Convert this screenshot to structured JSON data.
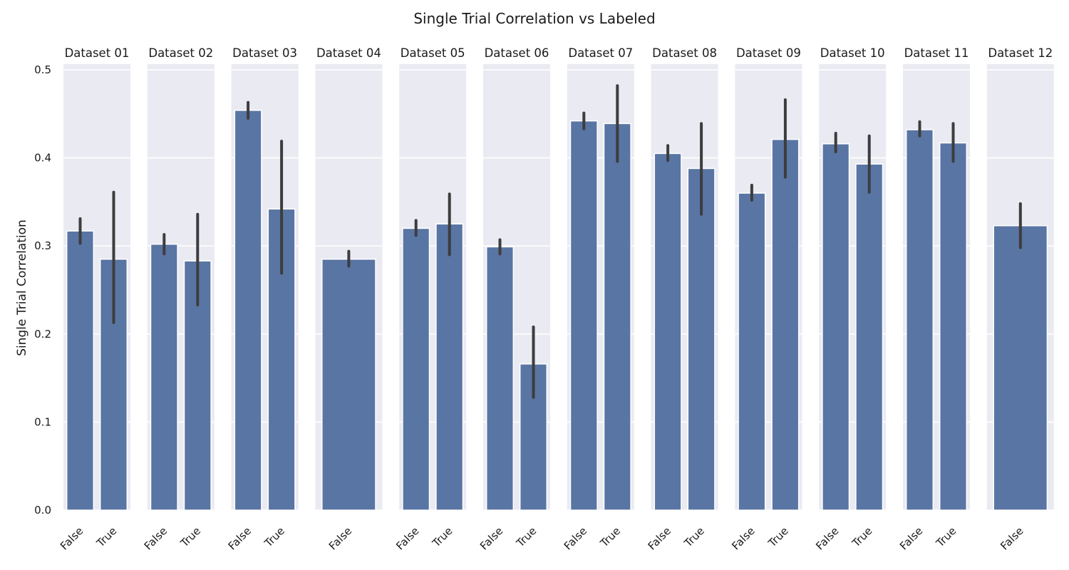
{
  "chart_data": {
    "type": "bar",
    "title": "Single Trial Correlation vs Labeled",
    "ylabel": "Single Trial Correlation",
    "xlabel": "",
    "ylim": [
      0,
      0.5
    ],
    "yticks": [
      "0.0",
      "0.1",
      "0.2",
      "0.3",
      "0.4",
      "0.5"
    ],
    "grid": true,
    "bar_color": "#5975a4",
    "error_bar_color": "#3d3d3d",
    "panel_background": "#eaeaf2",
    "panels": [
      {
        "name": "Dataset 01",
        "bars": [
          {
            "label": "False",
            "value": 0.317,
            "ci": [
              0.303,
              0.331
            ]
          },
          {
            "label": "True",
            "value": 0.285,
            "ci": [
              0.213,
              0.361
            ]
          }
        ]
      },
      {
        "name": "Dataset 02",
        "bars": [
          {
            "label": "False",
            "value": 0.302,
            "ci": [
              0.291,
              0.313
            ]
          },
          {
            "label": "True",
            "value": 0.283,
            "ci": [
              0.233,
              0.336
            ]
          }
        ]
      },
      {
        "name": "Dataset 03",
        "bars": [
          {
            "label": "False",
            "value": 0.454,
            "ci": [
              0.445,
              0.463
            ]
          },
          {
            "label": "True",
            "value": 0.342,
            "ci": [
              0.269,
              0.419
            ]
          }
        ]
      },
      {
        "name": "Dataset 04",
        "bars": [
          {
            "label": "False",
            "value": 0.285,
            "ci": [
              0.277,
              0.294
            ]
          }
        ]
      },
      {
        "name": "Dataset 05",
        "bars": [
          {
            "label": "False",
            "value": 0.32,
            "ci": [
              0.312,
              0.329
            ]
          },
          {
            "label": "True",
            "value": 0.325,
            "ci": [
              0.29,
              0.359
            ]
          }
        ]
      },
      {
        "name": "Dataset 06",
        "bars": [
          {
            "label": "False",
            "value": 0.299,
            "ci": [
              0.291,
              0.307
            ]
          },
          {
            "label": "True",
            "value": 0.166,
            "ci": [
              0.128,
              0.208
            ]
          }
        ]
      },
      {
        "name": "Dataset 07",
        "bars": [
          {
            "label": "False",
            "value": 0.442,
            "ci": [
              0.433,
              0.451
            ]
          },
          {
            "label": "True",
            "value": 0.439,
            "ci": [
              0.396,
              0.482
            ]
          }
        ]
      },
      {
        "name": "Dataset 08",
        "bars": [
          {
            "label": "False",
            "value": 0.405,
            "ci": [
              0.397,
              0.414
            ]
          },
          {
            "label": "True",
            "value": 0.388,
            "ci": [
              0.336,
              0.439
            ]
          }
        ]
      },
      {
        "name": "Dataset 09",
        "bars": [
          {
            "label": "False",
            "value": 0.36,
            "ci": [
              0.352,
              0.369
            ]
          },
          {
            "label": "True",
            "value": 0.421,
            "ci": [
              0.378,
              0.466
            ]
          }
        ]
      },
      {
        "name": "Dataset 10",
        "bars": [
          {
            "label": "False",
            "value": 0.416,
            "ci": [
              0.407,
              0.428
            ]
          },
          {
            "label": "True",
            "value": 0.393,
            "ci": [
              0.361,
              0.425
            ]
          }
        ]
      },
      {
        "name": "Dataset 11",
        "bars": [
          {
            "label": "False",
            "value": 0.432,
            "ci": [
              0.425,
              0.441
            ]
          },
          {
            "label": "True",
            "value": 0.417,
            "ci": [
              0.396,
              0.439
            ]
          }
        ]
      },
      {
        "name": "Dataset 12",
        "bars": [
          {
            "label": "False",
            "value": 0.323,
            "ci": [
              0.298,
              0.348
            ]
          }
        ]
      }
    ]
  }
}
